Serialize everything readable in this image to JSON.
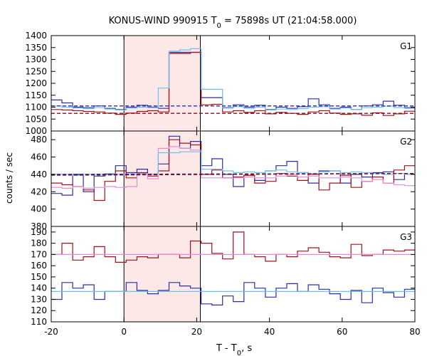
{
  "chart_data": {
    "type": "line",
    "title": "KONUS-WIND 990915 T",
    "title_sub": "0",
    "title_rest": " = 75898s UT (21:04:58.000)",
    "xlabel": "T - T",
    "xlabel_sub": "0",
    "xlabel_rest": ", s",
    "ylabel": "counts / sec",
    "xlim": [
      -20,
      80
    ],
    "xticks": [
      "-20",
      "0",
      "20",
      "40",
      "60",
      "80"
    ],
    "highlight_interval": [
      0,
      21
    ],
    "colors": {
      "blue": "#2b2fa8",
      "red": "#a3101c",
      "light_blue": "#6ec0ec",
      "pink": "#e88ad4",
      "dark_red_dash": "#8b0a1a",
      "highlight": "#fde8e8"
    },
    "panels": [
      {
        "label": "G1",
        "ylim": [
          1000,
          1400
        ],
        "yticks": [
          "1000",
          "1050",
          "1100",
          "1150",
          "1200",
          "1250",
          "1300",
          "1350",
          "1400"
        ],
        "series": [
          {
            "color": "#2b2fa8",
            "style": "step",
            "x_start": -20,
            "dt": 2.944,
            "values": [
              1130,
              1118,
              1100,
              1098,
              1105,
              1095,
              1090,
              1100,
              1108,
              1100,
              1095,
              1330,
              1330,
              1330,
              1140,
              1140,
              1098,
              1110,
              1100,
              1108,
              1090,
              1100,
              1095,
              1102,
              1135,
              1110,
              1095,
              1100,
              1090,
              1105,
              1110,
              1125,
              1108,
              1098
            ]
          },
          {
            "color": "#a3101c",
            "style": "step",
            "x_start": -20,
            "dt": 2.944,
            "values": [
              1090,
              1088,
              1085,
              1082,
              1080,
              1075,
              1070,
              1075,
              1082,
              1085,
              1080,
              1325,
              1325,
              1330,
              1110,
              1112,
              1080,
              1085,
              1078,
              1085,
              1072,
              1078,
              1074,
              1070,
              1080,
              1085,
              1075,
              1070,
              1072,
              1066,
              1076,
              1065,
              1072,
              1083
            ]
          },
          {
            "color": "#6ec0ec",
            "style": "step",
            "x_start": -20,
            "dt": 2.944,
            "values": [
              1105,
              1100,
              1096,
              1094,
              1098,
              1092,
              1088,
              1096,
              1100,
              1098,
              1180,
              1335,
              1340,
              1345,
              1175,
              1175,
              1096,
              1102,
              1095,
              1100,
              1088,
              1092,
              1090,
              1094,
              1100,
              1102,
              1092,
              1096,
              1090,
              1098,
              1100,
              1104,
              1098,
              1095
            ]
          },
          {
            "color": "#2b2fa8",
            "style": "dash",
            "points": [
              [
                -20,
                1105
              ],
              [
                80,
                1105
              ]
            ]
          },
          {
            "color": "#8b0a1a",
            "style": "dash",
            "points": [
              [
                -20,
                1074
              ],
              [
                80,
                1074
              ]
            ]
          }
        ]
      },
      {
        "label": "G2",
        "ylim": [
          380,
          490
        ],
        "yticks": [
          "380",
          "400",
          "420",
          "440",
          "460",
          "480"
        ],
        "series": [
          {
            "color": "#2b2fa8",
            "style": "step",
            "x_start": -20,
            "dt": 2.944,
            "values": [
              418,
              416,
              440,
              420,
              438,
              440,
              450,
              442,
              446,
              440,
              452,
              484,
              470,
              478,
              450,
              458,
              440,
              426,
              439,
              433,
              444,
              450,
              455,
              442,
              430,
              444,
              444,
              430,
              440,
              437,
              442,
              443,
              434,
              440
            ]
          },
          {
            "color": "#a3101c",
            "style": "step",
            "x_start": -20,
            "dt": 2.944,
            "values": [
              430,
              428,
              426,
              422,
              410,
              432,
              444,
              436,
              442,
              438,
              444,
              480,
              476,
              474,
              440,
              445,
              436,
              437,
              439,
              430,
              432,
              441,
              438,
              433,
              440,
              422,
              430,
              439,
              425,
              432,
              437,
              430,
              445,
              450
            ]
          },
          {
            "color": "#e88ad4",
            "style": "step",
            "x_start": -20,
            "dt": 2.944,
            "values": [
              425,
              424,
              426,
              424,
              425,
              426,
              425,
              426,
              440,
              435,
              470,
              472,
              470,
              468,
              436,
              436,
              436,
              436,
              437,
              436,
              436,
              438,
              440,
              437,
              438,
              436,
              436,
              437,
              436,
              432,
              434,
              430,
              428,
              427
            ]
          },
          {
            "color": "#6ec0ec",
            "style": "step",
            "x_start": -20,
            "dt": 2.944,
            "values": [
              440,
              440,
              439,
              440,
              440,
              441,
              440,
              440,
              441,
              440,
              465,
              465,
              466,
              466,
              446,
              446,
              444,
              442,
              443,
              442,
              444,
              445,
              443,
              442,
              441,
              443,
              444,
              442,
              443,
              442,
              441,
              440,
              441,
              440
            ]
          },
          {
            "color": "#2b2fa8",
            "style": "dash",
            "points": [
              [
                -20,
                440
              ],
              [
                80,
                441
              ]
            ]
          },
          {
            "color": "#8b0a1a",
            "style": "dash",
            "points": [
              [
                -20,
                439
              ],
              [
                80,
                441
              ]
            ]
          }
        ]
      },
      {
        "label": "G3",
        "ylim": [
          110,
          195
        ],
        "yticks": [
          "110",
          "120",
          "130",
          "140",
          "150",
          "160",
          "170",
          "180",
          "190"
        ],
        "series": [
          {
            "color": "#2b2fa8",
            "style": "step",
            "x_start": -20,
            "dt": 2.944,
            "values": [
              130,
              145,
              140,
              143,
              130,
              137,
              137,
              145,
              138,
              135,
              138,
              145,
              142,
              140,
              126,
              125,
              133,
              128,
              145,
              140,
              132,
              140,
              144,
              137,
              143,
              139,
              135,
              130,
              138,
              127,
              140,
              136,
              132,
              139
            ]
          },
          {
            "color": "#a3101c",
            "style": "step",
            "x_start": -20,
            "dt": 2.944,
            "values": [
              170,
              180,
              165,
              168,
              177,
              168,
              163,
              165,
              168,
              167,
              170,
              170,
              167,
              182,
              180,
              171,
              166,
              190,
              170,
              168,
              164,
              170,
              168,
              173,
              176,
              172,
              168,
              167,
              179,
              169,
              170,
              174,
              173,
              174
            ]
          },
          {
            "color": "#e88ad4",
            "style": "line",
            "points": [
              [
                -20,
                170
              ],
              [
                80,
                170
              ]
            ]
          },
          {
            "color": "#6ec0ec",
            "style": "line",
            "points": [
              [
                -20,
                137
              ],
              [
                80,
                137
              ]
            ]
          }
        ]
      }
    ]
  }
}
